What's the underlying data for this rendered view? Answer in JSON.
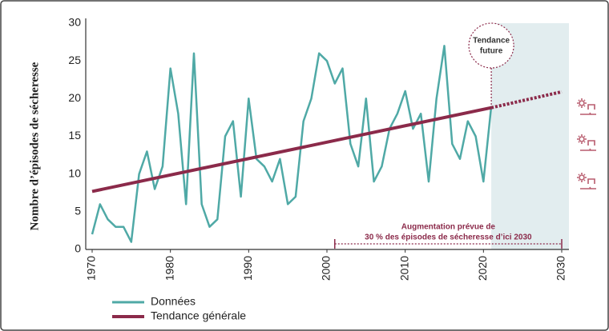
{
  "chart_data": {
    "type": "line",
    "y_label": "Nombre d’épisodes de sécheresse",
    "x": [
      1970,
      1971,
      1972,
      1973,
      1974,
      1975,
      1976,
      1977,
      1978,
      1979,
      1980,
      1981,
      1982,
      1983,
      1984,
      1985,
      1986,
      1987,
      1988,
      1989,
      1990,
      1991,
      1992,
      1993,
      1994,
      1995,
      1996,
      1997,
      1998,
      1999,
      2000,
      2001,
      2002,
      2003,
      2004,
      2005,
      2006,
      2007,
      2008,
      2009,
      2010,
      2011,
      2012,
      2013,
      2014,
      2015,
      2016,
      2017,
      2018,
      2019,
      2020,
      2021
    ],
    "series": [
      {
        "name": "Données",
        "color": "#4fa9a6",
        "values": [
          2,
          6,
          4,
          3,
          3,
          1,
          10,
          13,
          8,
          11,
          24,
          18,
          6,
          26,
          6,
          3,
          4,
          15,
          17,
          7,
          20,
          12,
          11,
          9,
          12,
          6,
          7,
          17,
          20,
          26,
          25,
          22,
          24,
          14,
          11,
          20,
          9,
          11,
          16,
          18,
          21,
          16,
          18,
          9,
          20,
          27,
          14,
          12,
          17,
          15,
          9,
          19
        ]
      },
      {
        "name": "Tendance générale",
        "color": "#8b2a4a",
        "x": [
          1970,
          2021
        ],
        "values": [
          7.7,
          18.8
        ]
      }
    ],
    "projection": {
      "color": "#8b2a4a",
      "x": [
        2021,
        2030
      ],
      "values": [
        18.8,
        20.9
      ]
    },
    "future_region": {
      "from": 2021,
      "to": 2030,
      "color": "#e2edef"
    },
    "annotations": [
      {
        "lines": [
          "Tendance",
          "future"
        ],
        "x": 2021
      },
      {
        "lines": [
          "Augmentation prévue de",
          "30 % des épisodes de sécheresse d’ici 2030"
        ],
        "from": 2001,
        "to": 2030
      }
    ],
    "xlim": [
      1970,
      2030
    ],
    "xticks": [
      1970,
      1980,
      1990,
      2000,
      2010,
      2020,
      2030
    ],
    "ylim": [
      0,
      30
    ],
    "yticks": [
      0,
      5,
      10,
      15,
      20,
      25,
      30
    ],
    "grid": false
  }
}
